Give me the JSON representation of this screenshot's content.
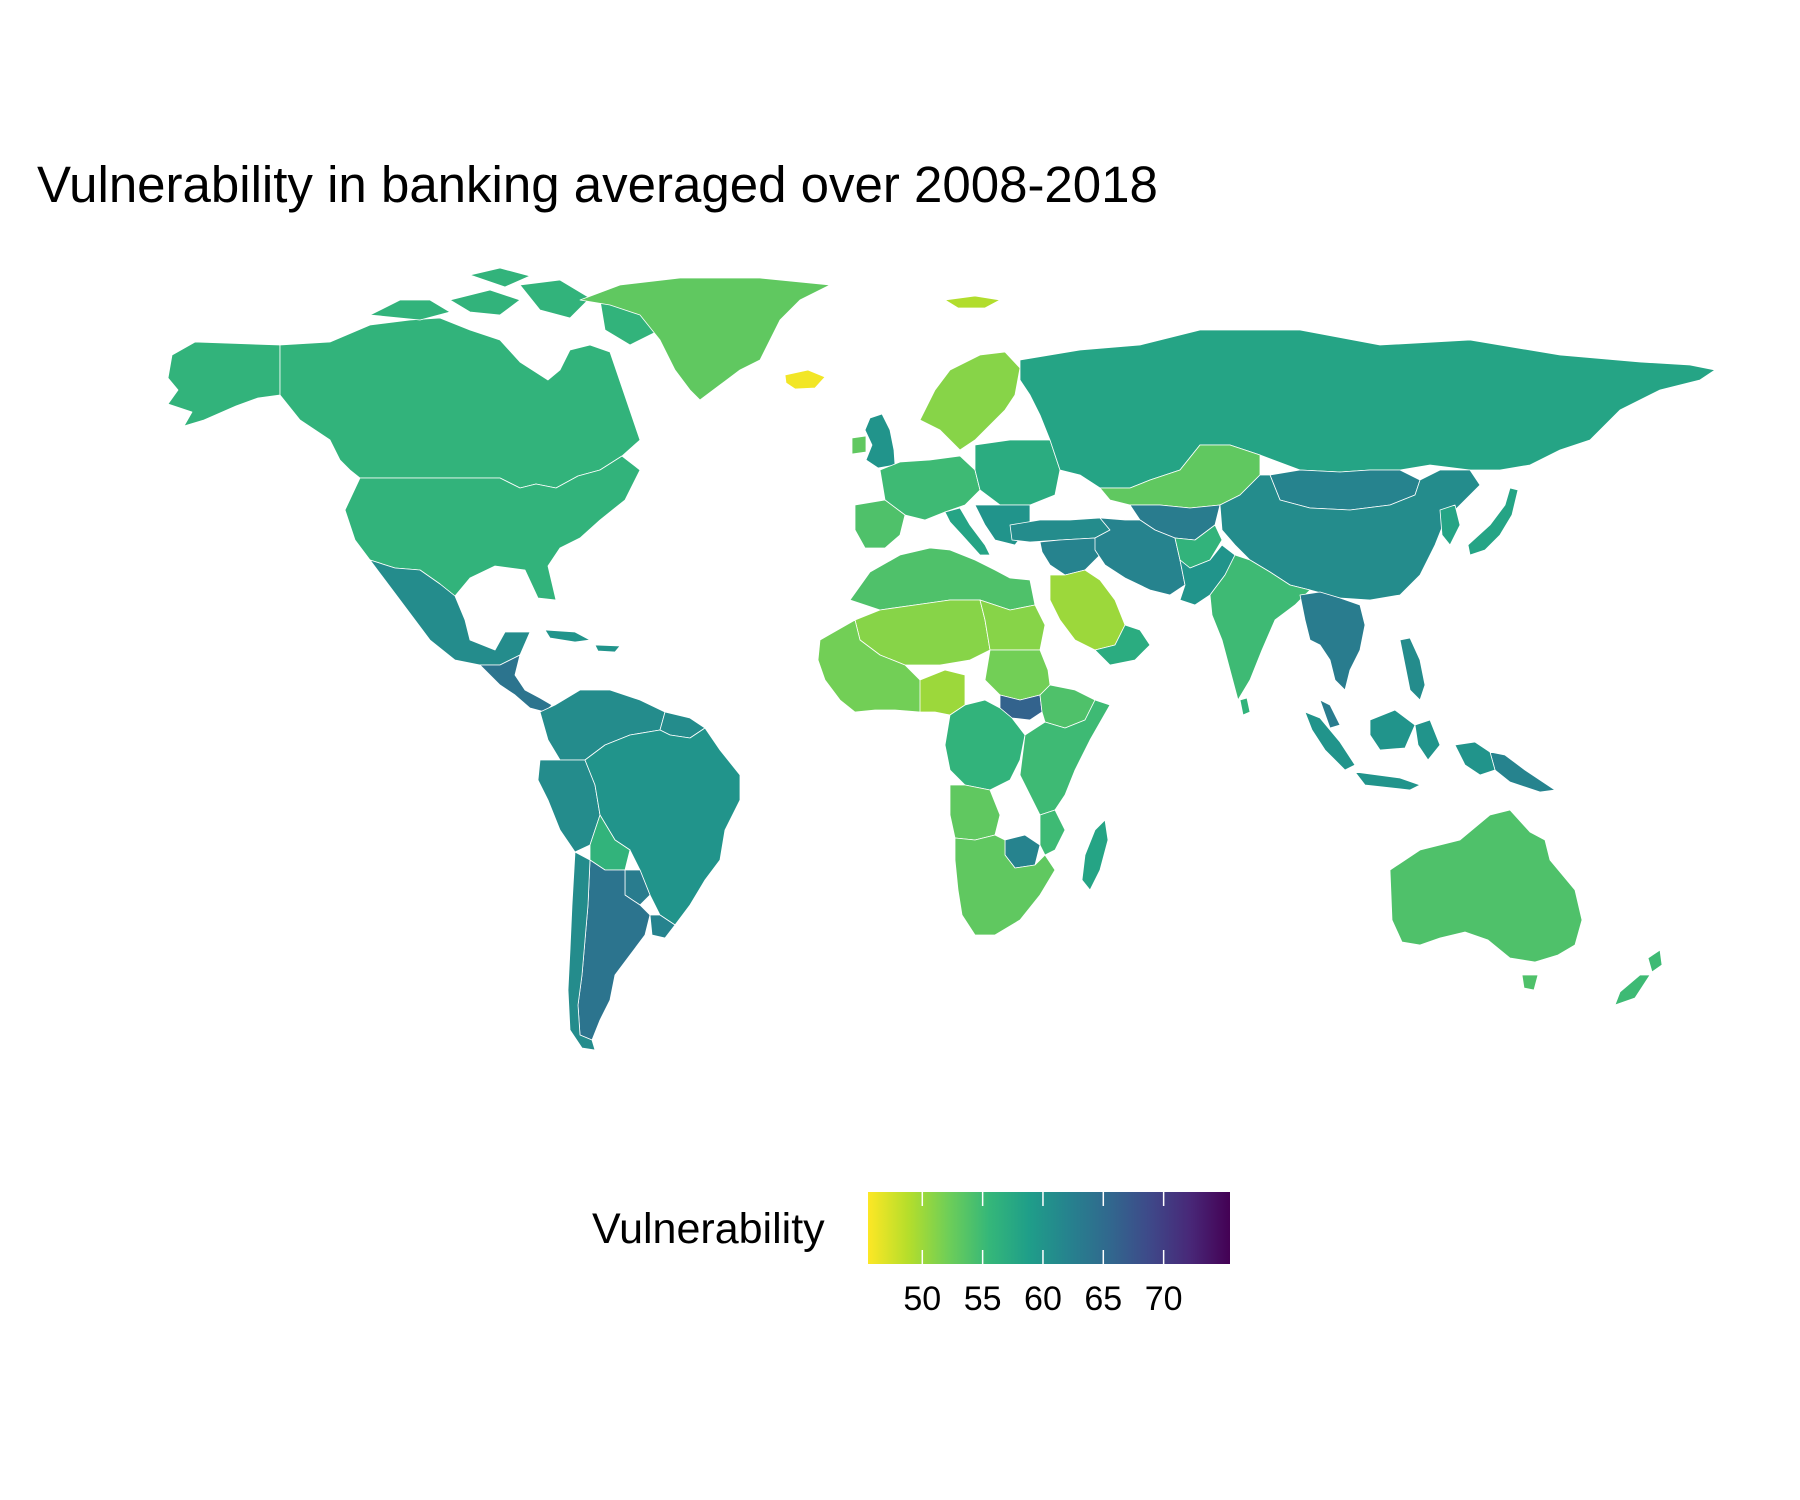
{
  "title": "Vulnerability in banking averaged over 2008-2018",
  "legend": {
    "title": "Vulnerability",
    "ticks": [
      {
        "value": 50,
        "label": "50"
      },
      {
        "value": 55,
        "label": "55"
      },
      {
        "value": 60,
        "label": "60"
      },
      {
        "value": 65,
        "label": "65"
      },
      {
        "value": 70,
        "label": "70"
      }
    ],
    "range": [
      45.5,
      75.5
    ],
    "palette": [
      "#fde725",
      "#b5de2b",
      "#6ece58",
      "#35b779",
      "#1f9e89",
      "#26828e",
      "#31688e",
      "#3e4989",
      "#482878",
      "#440154"
    ],
    "palette_name": "viridis (reversed)"
  },
  "regions": [
    {
      "name": "Alaska",
      "value": 56
    },
    {
      "name": "Canada",
      "value": 56
    },
    {
      "name": "United States",
      "value": 56
    },
    {
      "name": "Mexico",
      "value": 61
    },
    {
      "name": "Central America",
      "value": 64
    },
    {
      "name": "Caribbean",
      "value": 60
    },
    {
      "name": "Greenland",
      "value": 53
    },
    {
      "name": "Iceland",
      "value": 46
    },
    {
      "name": "Svalbard",
      "value": 49
    },
    {
      "name": "Scandinavia",
      "value": 51
    },
    {
      "name": "United Kingdom",
      "value": 60
    },
    {
      "name": "Ireland",
      "value": 53
    },
    {
      "name": "Western Europe",
      "value": 55
    },
    {
      "name": "Iberia",
      "value": 54
    },
    {
      "name": "Italy",
      "value": 58
    },
    {
      "name": "Eastern Europe",
      "value": 57
    },
    {
      "name": "Balkans",
      "value": 60
    },
    {
      "name": "Russia",
      "value": 58
    },
    {
      "name": "Kazakhstan",
      "value": 53
    },
    {
      "name": "Central Asia",
      "value": 63
    },
    {
      "name": "Mongolia",
      "value": 62
    },
    {
      "name": "China",
      "value": 61
    },
    {
      "name": "Korea",
      "value": 58
    },
    {
      "name": "Japan",
      "value": 58
    },
    {
      "name": "Turkey",
      "value": 61
    },
    {
      "name": "Iran",
      "value": 62
    },
    {
      "name": "Afghanistan",
      "value": 56
    },
    {
      "name": "Pakistan",
      "value": 60
    },
    {
      "name": "India",
      "value": 55
    },
    {
      "name": "Sri Lanka",
      "value": 56
    },
    {
      "name": "Southeast Asia",
      "value": 63
    },
    {
      "name": "Philippines",
      "value": 61
    },
    {
      "name": "Indonesia",
      "value": 60
    },
    {
      "name": "Papua New Guinea",
      "value": 62
    },
    {
      "name": "Australia",
      "value": 54
    },
    {
      "name": "New Zealand",
      "value": 55
    },
    {
      "name": "Saudi Arabia",
      "value": 50
    },
    {
      "name": "Gulf",
      "value": 57
    },
    {
      "name": "North Africa",
      "value": 54
    },
    {
      "name": "Sahel",
      "value": 51
    },
    {
      "name": "West Africa",
      "value": 52
    },
    {
      "name": "Nigeria",
      "value": 50
    },
    {
      "name": "Sudan",
      "value": 52
    },
    {
      "name": "South Sudan",
      "value": 66
    },
    {
      "name": "Ethiopia",
      "value": 54
    },
    {
      "name": "Central Africa",
      "value": 56
    },
    {
      "name": "East Africa",
      "value": 55
    },
    {
      "name": "Angola",
      "value": 53
    },
    {
      "name": "Southern Africa",
      "value": 53
    },
    {
      "name": "Zimbabwe",
      "value": 62
    },
    {
      "name": "Madagascar",
      "value": 58
    },
    {
      "name": "Colombia-Venezuela",
      "value": 61
    },
    {
      "name": "Peru",
      "value": 61
    },
    {
      "name": "Brazil",
      "value": 60
    },
    {
      "name": "Bolivia",
      "value": 56
    },
    {
      "name": "Paraguay",
      "value": 63
    },
    {
      "name": "Argentina",
      "value": 64
    },
    {
      "name": "Chile",
      "value": 61
    },
    {
      "name": "Uruguay",
      "value": 62
    }
  ]
}
